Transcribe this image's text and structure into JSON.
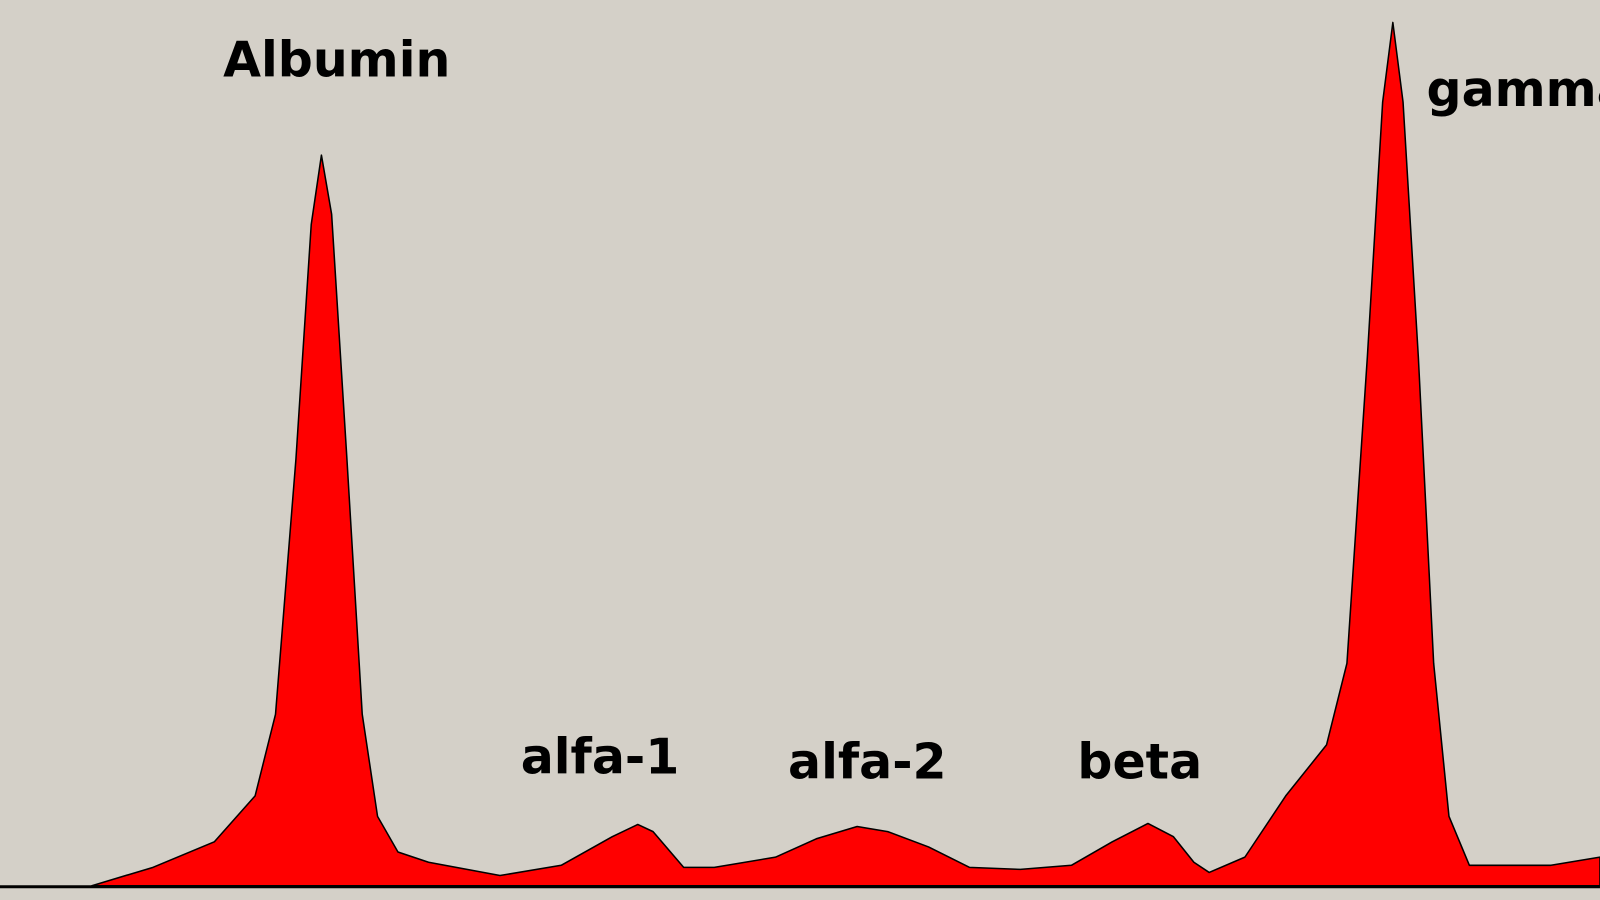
{
  "labels": {
    "albumin": "Albumin",
    "alfa1": "alfa-1",
    "alfa2": "alfa-2",
    "beta": "beta",
    "gamma": "gamma"
  }
}
